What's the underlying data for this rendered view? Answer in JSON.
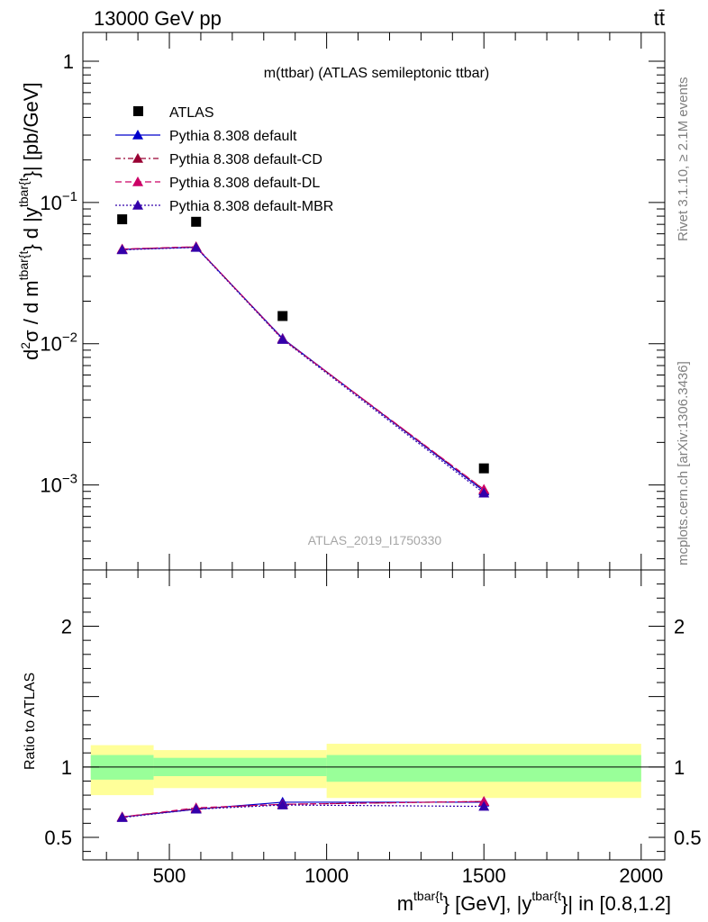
{
  "header": {
    "energy_label": "13000 GeV pp",
    "process_label": "tt̄"
  },
  "side_labels": {
    "rivet": "Rivet 3.1.10, ≥ 2.1M events",
    "mcplots": "mcplots.cern.ch [arXiv:1306.3436]"
  },
  "colors": {
    "atlas": "#000000",
    "default": "#0000cc",
    "default_cd": "#990033",
    "default_dl": "#cc0066",
    "default_mbr": "#3300aa",
    "band_inner": "#99ff99",
    "band_outer": "#ffff99"
  },
  "chart_data": [
    {
      "type": "line",
      "panel": "main",
      "title": "m(ttbar) (ATLAS semileptonic ttbar)",
      "watermark": "ATLAS_2019_I1750330",
      "ylabel_parts": {
        "d2s": "d",
        "sq": "2",
        "sigma": "σ / d m",
        "sup1": "tbar{t",
        "mid": "} d |y",
        "sup2": "tbar{t",
        "end": "}| [pb/GeV]"
      },
      "xlim": [
        225,
        2075
      ],
      "ylim": [
        0.00025,
        1.6
      ],
      "yscale": "log",
      "y_ticks": [
        {
          "value": 1,
          "label": "1"
        },
        {
          "value": 0.1,
          "label": "10",
          "exp": "−1"
        },
        {
          "value": 0.01,
          "label": "10",
          "exp": "−2"
        },
        {
          "value": 0.001,
          "label": "10",
          "exp": "−3"
        }
      ],
      "legend": [
        {
          "name": "ATLAS",
          "marker": "square"
        },
        {
          "name": "Pythia 8.308 default",
          "marker": "triangle"
        },
        {
          "name": "Pythia 8.308 default-CD",
          "marker": "triangle"
        },
        {
          "name": "Pythia 8.308 default-DL",
          "marker": "triangle"
        },
        {
          "name": "Pythia 8.308 default-MBR",
          "marker": "triangle"
        }
      ],
      "legend_position": "top-left",
      "x": [
        350,
        585,
        860,
        1500
      ],
      "series": [
        {
          "name": "ATLAS",
          "values": [
            0.076,
            0.073,
            0.0157,
            0.00131
          ]
        },
        {
          "name": "Pythia 8.308 default",
          "values": [
            0.0465,
            0.0482,
            0.0109,
            0.000905
          ]
        },
        {
          "name": "Pythia 8.308 default-CD",
          "values": [
            0.0467,
            0.0485,
            0.0108,
            0.000925
          ]
        },
        {
          "name": "Pythia 8.308 default-DL",
          "values": [
            0.0468,
            0.0486,
            0.0108,
            0.00093
          ]
        },
        {
          "name": "Pythia 8.308 default-MBR",
          "values": [
            0.0462,
            0.048,
            0.0107,
            0.000875
          ]
        }
      ]
    },
    {
      "type": "line",
      "panel": "ratio",
      "ylabel": "Ratio to ATLAS",
      "xlabel_parts": {
        "m": "m",
        "sup1": "tbar{t",
        "mid": "} [GeV], |y",
        "sup2": "tbar{t",
        "end": "}| in [0.8,1.2]"
      },
      "xlim": [
        225,
        2075
      ],
      "ylim": [
        0.34,
        2.4
      ],
      "x_ticks": [
        500,
        1000,
        1500,
        2000
      ],
      "y_ticks": [
        0.5,
        1,
        2
      ],
      "bands": [
        {
          "x_from": 250,
          "x_to": 450,
          "inner": [
            0.91,
            1.085
          ],
          "outer": [
            0.8,
            1.155
          ]
        },
        {
          "x_from": 450,
          "x_to": 1000,
          "inner": [
            0.935,
            1.065
          ],
          "outer": [
            0.85,
            1.12
          ]
        },
        {
          "x_from": 1000,
          "x_to": 2000,
          "inner": [
            0.895,
            1.085
          ],
          "outer": [
            0.78,
            1.165
          ]
        }
      ],
      "x": [
        350,
        585,
        860,
        1500
      ],
      "series": [
        {
          "name": "Pythia 8.308 default",
          "values": [
            0.645,
            0.7,
            0.75,
            0.75
          ]
        },
        {
          "name": "Pythia 8.308 default-CD",
          "values": [
            0.645,
            0.705,
            0.735,
            0.755
          ]
        },
        {
          "name": "Pythia 8.308 default-DL",
          "values": [
            0.645,
            0.71,
            0.735,
            0.755
          ]
        },
        {
          "name": "Pythia 8.308 default-MBR",
          "values": [
            0.64,
            0.7,
            0.73,
            0.72
          ]
        }
      ]
    }
  ]
}
